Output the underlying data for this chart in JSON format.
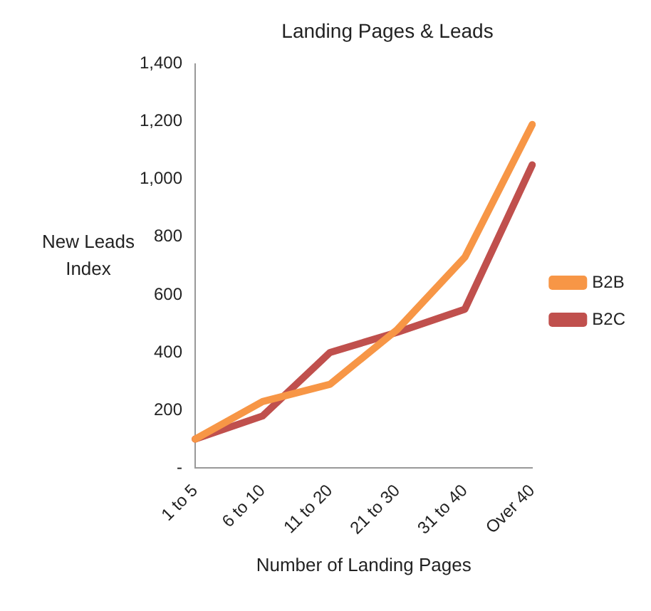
{
  "chart_data": {
    "type": "line",
    "title": "Landing Pages & Leads",
    "xlabel": "Number of Landing Pages",
    "ylabel": "New Leads Index",
    "categories": [
      "1 to 5",
      "6 to 10",
      "11 to 20",
      "21 to 30",
      "31 to 40",
      "Over 40"
    ],
    "series": [
      {
        "name": "B2B",
        "color": "#f79646",
        "values": [
          100,
          230,
          290,
          480,
          730,
          1190
        ]
      },
      {
        "name": "B2C",
        "color": "#c0504d",
        "values": [
          100,
          180,
          400,
          470,
          550,
          1050
        ]
      }
    ],
    "ylim": [
      0,
      1400
    ],
    "yticks": [
      {
        "value": 0,
        "label": "-"
      },
      200,
      400,
      600,
      800,
      {
        "value": 1000,
        "label": "1,000"
      },
      {
        "value": 1200,
        "label": "1,200"
      },
      {
        "value": 1400,
        "label": "1,400"
      }
    ],
    "grid": false,
    "legend": "right",
    "marker": "none",
    "line_style": "solid"
  }
}
